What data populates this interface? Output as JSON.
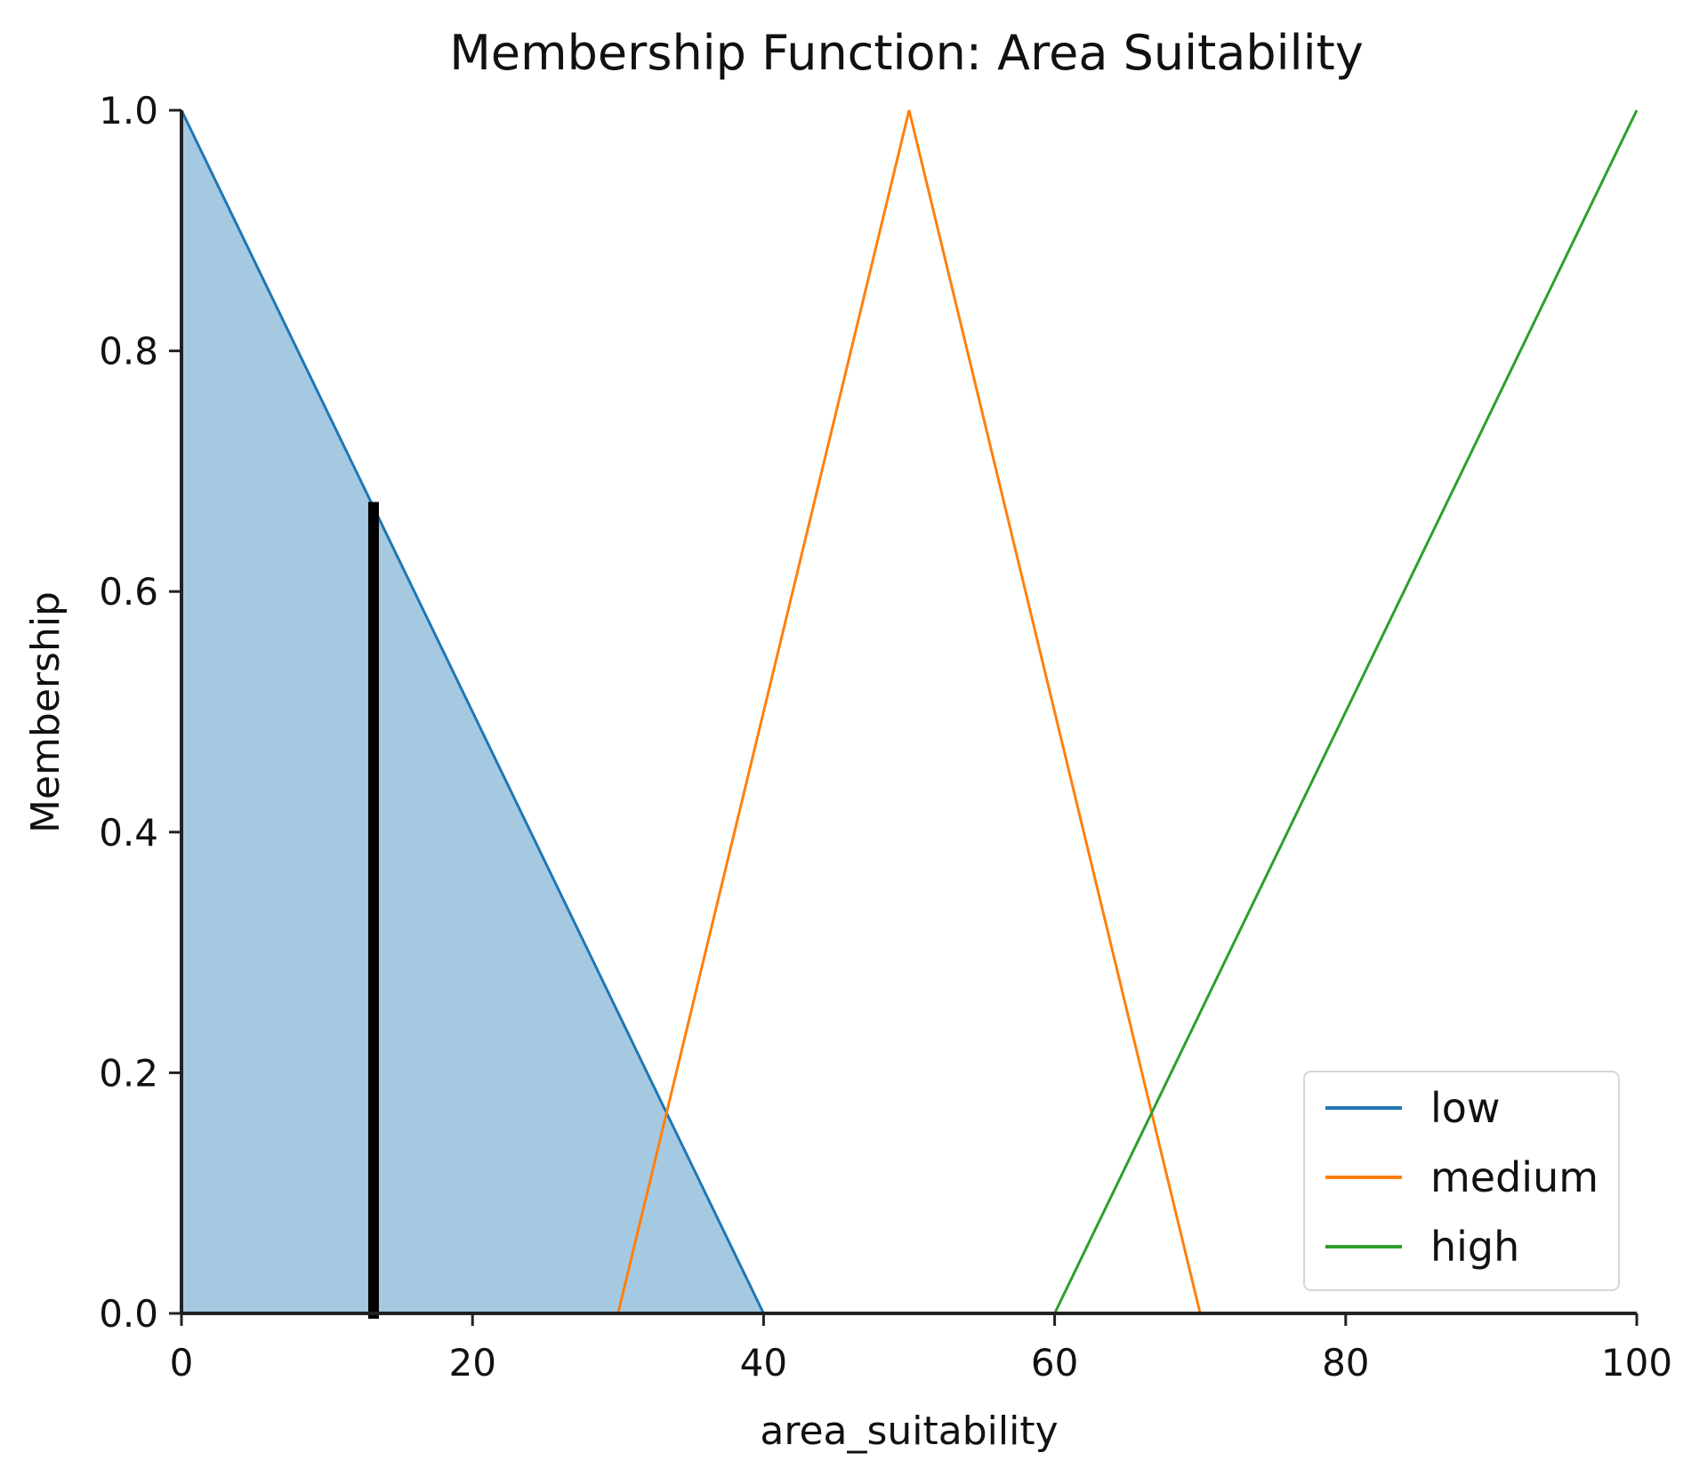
{
  "chart_data": {
    "type": "line",
    "title": "Membership Function: Area Suitability",
    "xlabel": "area_suitability",
    "ylabel": "Membership",
    "xlim": [
      0,
      100
    ],
    "ylim": [
      0,
      1
    ],
    "x_ticks": [
      0,
      20,
      40,
      60,
      80,
      100
    ],
    "y_ticks": [
      0,
      0.2,
      0.4,
      0.6,
      0.8,
      1.0
    ],
    "x_tick_labels": [
      "0",
      "20",
      "40",
      "60",
      "80",
      "100"
    ],
    "y_tick_labels": [
      "0.0",
      "0.2",
      "0.4",
      "0.6",
      "0.8",
      "1.0"
    ],
    "legend_position": "bottom-right",
    "series": [
      {
        "name": "low",
        "color": "#1f77b4",
        "x": [
          0,
          40,
          100
        ],
        "y": [
          1,
          0,
          0
        ],
        "filled": true,
        "fill_color": "#1f77b4"
      },
      {
        "name": "medium",
        "color": "#ff7f0e",
        "x": [
          0,
          30,
          50,
          70,
          100
        ],
        "y": [
          0,
          0,
          1,
          0,
          0
        ],
        "filled": false
      },
      {
        "name": "high",
        "color": "#2ca02c",
        "x": [
          0,
          60,
          100
        ],
        "y": [
          0,
          0,
          1
        ],
        "filled": false
      }
    ],
    "annotations": [
      {
        "type": "vline",
        "name": "input-value-line",
        "x": 13.2,
        "y_from": 0,
        "y_to": 0.67,
        "color": "#000000"
      }
    ]
  }
}
